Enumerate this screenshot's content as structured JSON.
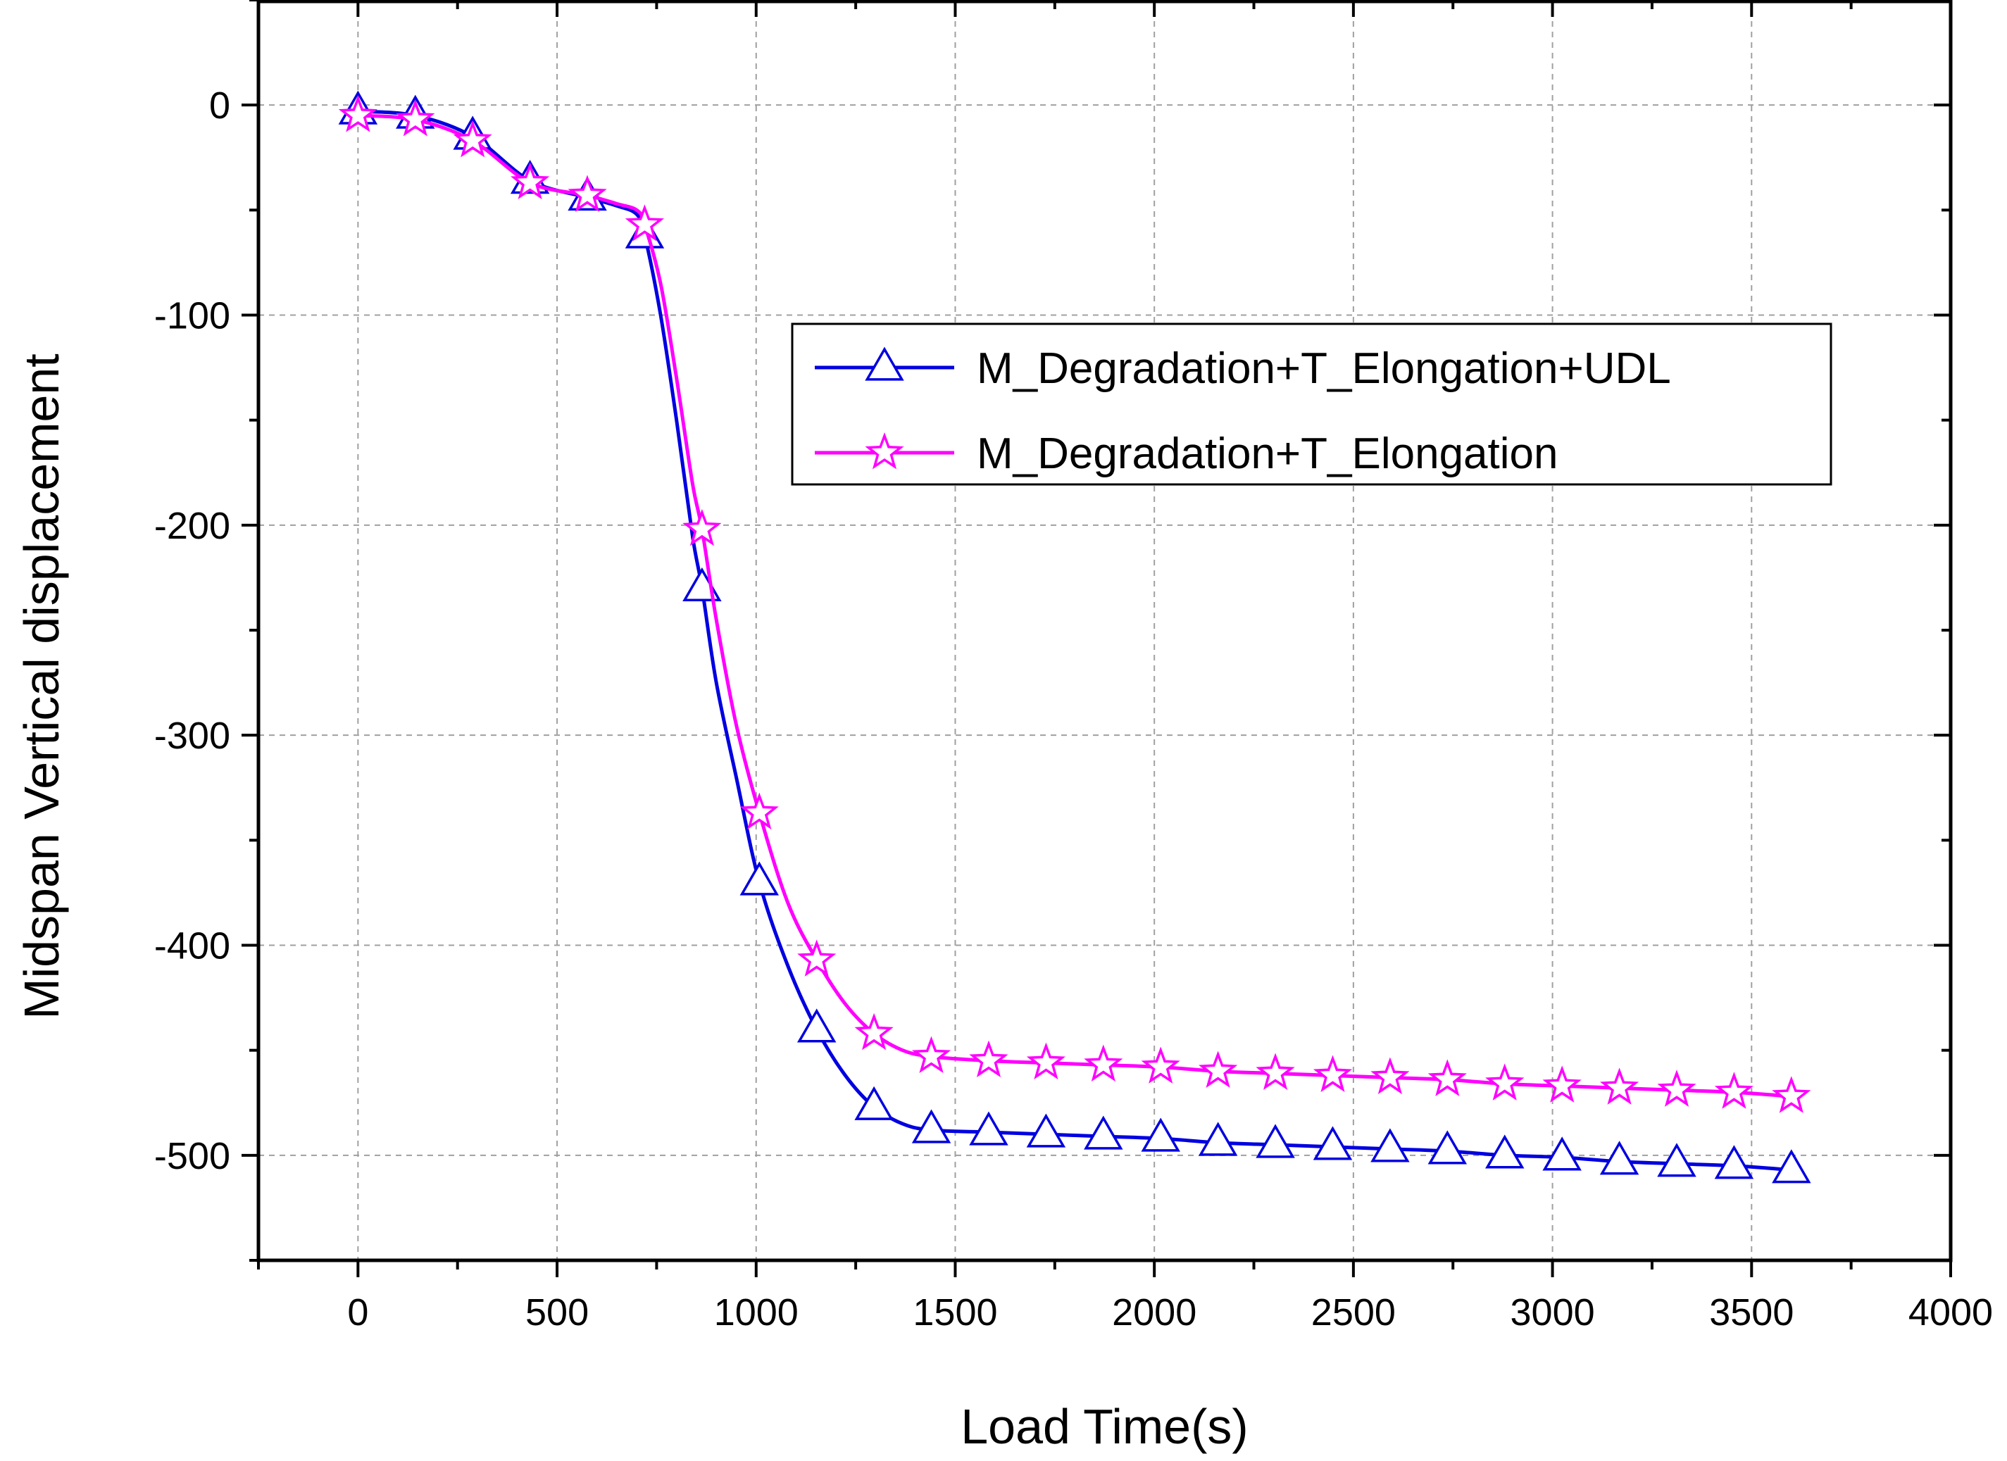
{
  "chart_data": {
    "type": "line",
    "title": "",
    "xlabel": "Load Time(s)",
    "ylabel": "Midspan Vertical displacement",
    "xlim": [
      -250,
      4000
    ],
    "ylim": [
      -550,
      50
    ],
    "x_ticks": [
      0,
      500,
      1000,
      1500,
      2000,
      2500,
      3000,
      3500,
      4000
    ],
    "y_ticks": [
      0,
      -100,
      -200,
      -300,
      -400,
      -500
    ],
    "x_tick_labels": [
      "0",
      "500",
      "1000",
      "1500",
      "2000",
      "2500",
      "3000",
      "3500",
      "4000"
    ],
    "y_tick_labels": [
      "0",
      "-100",
      "-200",
      "-300",
      "-400",
      "-500"
    ],
    "grid": true,
    "legend_position": "upper-right",
    "series": [
      {
        "name": "M_Degradation+T_Elongation+UDL",
        "color": "#0000e0",
        "marker": "triangle",
        "curve_x": [
          0,
          144,
          288,
          432,
          576,
          650,
          700,
          720,
          760,
          800,
          840,
          864,
          900,
          950,
          1008,
          1080,
          1152,
          1224,
          1296,
          1368,
          1440,
          1584,
          1728,
          1872,
          2016,
          2160,
          2304,
          2448,
          2592,
          2736,
          2880,
          3024,
          3168,
          3312,
          3456,
          3600
        ],
        "curve_y": [
          -3,
          -5,
          -15,
          -36,
          -44,
          -48,
          -52,
          -62,
          -100,
          -150,
          -205,
          -230,
          -275,
          -320,
          -370,
          -410,
          -440,
          -462,
          -477,
          -485,
          -488,
          -489,
          -490,
          -491,
          -492,
          -494,
          -495,
          -496,
          -497,
          -498,
          -500,
          -501,
          -503,
          -504,
          -505,
          -507
        ],
        "marker_x": [
          0,
          144,
          288,
          432,
          576,
          720,
          864,
          1008,
          1152,
          1296,
          1440,
          1584,
          1728,
          1872,
          2016,
          2160,
          2304,
          2448,
          2592,
          2736,
          2880,
          3024,
          3168,
          3312,
          3456,
          3600
        ],
        "marker_y": [
          -3,
          -5,
          -15,
          -36,
          -44,
          -62,
          -230,
          -370,
          -440,
          -477,
          -488,
          -489,
          -490,
          -491,
          -492,
          -494,
          -495,
          -496,
          -497,
          -498,
          -500,
          -501,
          -503,
          -504,
          -505,
          -507
        ]
      },
      {
        "name": "M_Degradation+T_Elongation",
        "color": "#ff00ff",
        "marker": "star",
        "curve_x": [
          0,
          144,
          288,
          432,
          576,
          650,
          700,
          720,
          760,
          800,
          840,
          864,
          900,
          950,
          1008,
          1080,
          1152,
          1224,
          1296,
          1368,
          1440,
          1584,
          1728,
          1872,
          2016,
          2160,
          2304,
          2448,
          2592,
          2736,
          2880,
          3024,
          3168,
          3312,
          3456,
          3600
        ],
        "curve_y": [
          -5,
          -7,
          -17,
          -37,
          -43,
          -47,
          -50,
          -57,
          -85,
          -130,
          -180,
          -202,
          -245,
          -295,
          -337,
          -380,
          -407,
          -428,
          -442,
          -450,
          -453,
          -455,
          -456,
          -457,
          -458,
          -460,
          -461,
          -462,
          -463,
          -464,
          -466,
          -467,
          -468,
          -469,
          -470,
          -472
        ],
        "marker_x": [
          0,
          144,
          288,
          432,
          576,
          720,
          864,
          1008,
          1152,
          1296,
          1440,
          1584,
          1728,
          1872,
          2016,
          2160,
          2304,
          2448,
          2592,
          2736,
          2880,
          3024,
          3168,
          3312,
          3456,
          3600
        ],
        "marker_y": [
          -5,
          -7,
          -17,
          -37,
          -43,
          -57,
          -202,
          -337,
          -407,
          -442,
          -453,
          -455,
          -456,
          -457,
          -458,
          -460,
          -461,
          -462,
          -463,
          -464,
          -466,
          -467,
          -468,
          -469,
          -470,
          -472
        ]
      }
    ]
  }
}
